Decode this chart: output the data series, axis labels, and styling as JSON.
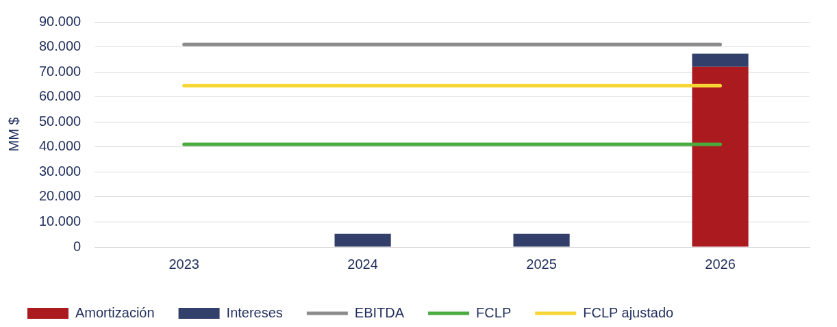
{
  "chart_data": {
    "type": "bar",
    "ylabel": "MM $",
    "categories": [
      "2023",
      "2024",
      "2025",
      "2026"
    ],
    "stacked": true,
    "series": [
      {
        "name": "Amortización",
        "color": "#ab1a1e",
        "values": [
          0,
          0,
          0,
          72000
        ]
      },
      {
        "name": "Intereses",
        "color": "#333f6b",
        "values": [
          0,
          5300,
          5300,
          5300
        ]
      },
      {
        "name": "EBITDA",
        "type": "line",
        "color": "#8c8c8c",
        "values": [
          81000,
          81000,
          81000,
          81000
        ]
      },
      {
        "name": "FCLP",
        "type": "line",
        "color": "#4aab3f",
        "values": [
          41000,
          41000,
          41000,
          41000
        ]
      },
      {
        "name": "FCLP ajustado",
        "type": "line",
        "color": "#f5d635",
        "values": [
          64500,
          64500,
          64500,
          64500
        ]
      }
    ],
    "ylim": [
      0,
      90000
    ],
    "yticks": [
      {
        "value": 0,
        "label": "0"
      },
      {
        "value": 10000,
        "label": "10.000"
      },
      {
        "value": 20000,
        "label": "20.000"
      },
      {
        "value": 30000,
        "label": "30.000"
      },
      {
        "value": 40000,
        "label": "40.000"
      },
      {
        "value": 50000,
        "label": "50.000"
      },
      {
        "value": 60000,
        "label": "60.000"
      },
      {
        "value": 70000,
        "label": "70.000"
      },
      {
        "value": 80000,
        "label": "80.000"
      },
      {
        "value": 90000,
        "label": "90.000"
      }
    ],
    "grid": "y",
    "legend": "bottom",
    "marker": "none",
    "line_style": "solid"
  }
}
